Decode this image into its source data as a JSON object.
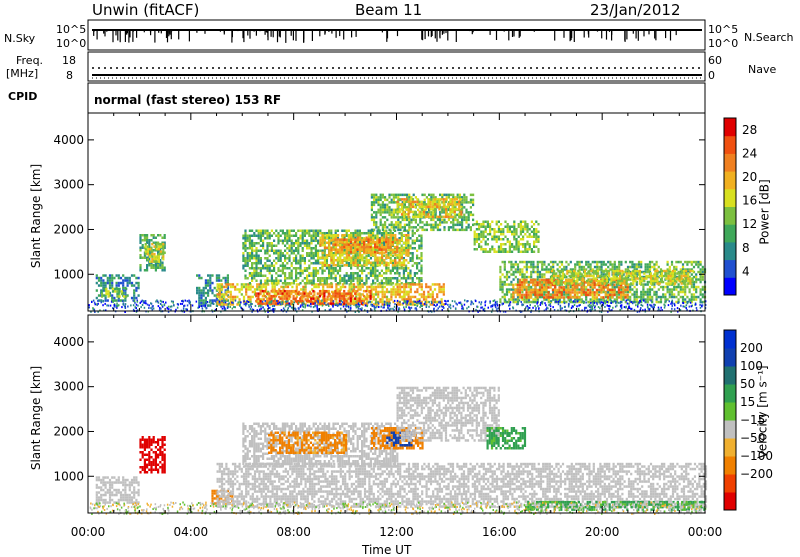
{
  "header": {
    "station": "Unwin (fitACF)",
    "beam": "Beam 11",
    "date": "23/Jan/2012"
  },
  "noise_panel": {
    "left_label": "N.Sky",
    "left_ticks": [
      "10^5",
      "10^0"
    ],
    "right_ticks": [
      "10^5",
      "10^0"
    ],
    "right_label": "N.Search"
  },
  "freq_panel": {
    "left_label_1": "Freq.",
    "left_label_2": "[MHz]",
    "left_ticks": [
      "18",
      "8"
    ],
    "right_ticks": [
      "60",
      "0"
    ],
    "right_label": "Nave"
  },
  "cpid": {
    "label": "CPID",
    "text": "normal (fast stereo) 153 RF"
  },
  "colors": {
    "power": [
      "#0000ff",
      "#2050d0",
      "#2a8a8a",
      "#3fa85a",
      "#7cc040",
      "#d8e020",
      "#f0b020",
      "#f08020",
      "#f05010",
      "#e00000"
    ],
    "velocity": [
      "#e00000",
      "#f04000",
      "#f08000",
      "#f0b030",
      "#c0c0c0",
      "#60c030",
      "#30a050",
      "#207070",
      "#1040b0",
      "#0030d0"
    ]
  },
  "chart_data": [
    {
      "type": "heatmap",
      "title": "",
      "ylabel": "Slant Range [km]",
      "xlabel": "",
      "ylim": [
        180,
        4600
      ],
      "y_ticks": [
        "1000",
        "2000",
        "3000",
        "4000"
      ],
      "y_tick_values": [
        1000,
        2000,
        3000,
        4000
      ],
      "colorbar": {
        "label": "Power [dB]",
        "range": [
          0,
          30
        ],
        "ticks": [
          "4",
          "8",
          "12",
          "16",
          "20",
          "24",
          "28"
        ],
        "tick_values": [
          4,
          8,
          12,
          16,
          20,
          24,
          28
        ]
      },
      "regions": [
        {
          "t0": 0.3,
          "t1": 2.0,
          "r0": 400,
          "r1": 1000,
          "level": 8
        },
        {
          "t0": 0.5,
          "t1": 1.5,
          "r0": 500,
          "r1": 700,
          "level": 14
        },
        {
          "t0": 2.0,
          "t1": 3.0,
          "r0": 1100,
          "r1": 1900,
          "level": 10
        },
        {
          "t0": 2.2,
          "t1": 2.9,
          "r0": 1300,
          "r1": 1700,
          "level": 16
        },
        {
          "t0": 4.2,
          "t1": 5.4,
          "r0": 300,
          "r1": 1000,
          "level": 8
        },
        {
          "t0": 5.0,
          "t1": 12.5,
          "r0": 300,
          "r1": 800,
          "level": 18
        },
        {
          "t0": 6.5,
          "t1": 11.0,
          "r0": 350,
          "r1": 650,
          "level": 24
        },
        {
          "t0": 6.0,
          "t1": 13.0,
          "r0": 800,
          "r1": 2000,
          "level": 12
        },
        {
          "t0": 9.0,
          "t1": 12.5,
          "r0": 1200,
          "r1": 1900,
          "level": 18
        },
        {
          "t0": 9.5,
          "t1": 12.0,
          "r0": 1500,
          "r1": 1800,
          "level": 22
        },
        {
          "t0": 11.0,
          "t1": 15.0,
          "r0": 2000,
          "r1": 2800,
          "level": 12
        },
        {
          "t0": 12.0,
          "t1": 14.5,
          "r0": 2300,
          "r1": 2700,
          "level": 18
        },
        {
          "t0": 12.0,
          "t1": 13.8,
          "r0": 300,
          "r1": 800,
          "level": 20
        },
        {
          "t0": 15.0,
          "t1": 17.5,
          "r0": 1500,
          "r1": 2200,
          "level": 14
        },
        {
          "t0": 16.0,
          "t1": 24.0,
          "r0": 400,
          "r1": 1300,
          "level": 12
        },
        {
          "t0": 16.5,
          "t1": 21.0,
          "r0": 500,
          "r1": 900,
          "level": 22
        },
        {
          "t0": 18.0,
          "t1": 23.5,
          "r0": 800,
          "r1": 1100,
          "level": 16
        }
      ]
    },
    {
      "type": "heatmap",
      "title": "",
      "ylabel": "Slant Range [km]",
      "xlabel": "Time UT",
      "ylim": [
        180,
        4600
      ],
      "y_ticks": [
        "1000",
        "2000",
        "3000",
        "4000"
      ],
      "y_tick_values": [
        1000,
        2000,
        3000,
        4000
      ],
      "x_ticks": [
        "00:00",
        "04:00",
        "08:00",
        "12:00",
        "16:00",
        "20:00",
        "00:00"
      ],
      "x_tick_values": [
        0,
        4,
        8,
        12,
        16,
        20,
        24
      ],
      "colorbar": {
        "label": "Velocity [m s⁻¹]",
        "range": [
          -250,
          250
        ],
        "ticks": [
          "200",
          "100",
          "50",
          "15",
          "−15",
          "−50",
          "−100",
          "−200"
        ],
        "tick_values": [
          200,
          100,
          50,
          15,
          -15,
          -50,
          -100,
          -200
        ]
      },
      "regions": [
        {
          "t0": 0.3,
          "t1": 2.0,
          "r0": 400,
          "r1": 1000,
          "level": 0
        },
        {
          "t0": 2.0,
          "t1": 3.0,
          "r0": 1100,
          "r1": 1900,
          "level": -220
        },
        {
          "t0": 4.8,
          "t1": 5.6,
          "r0": 400,
          "r1": 700,
          "level": -60
        },
        {
          "t0": 5.0,
          "t1": 24.0,
          "r0": 300,
          "r1": 1300,
          "level": 0
        },
        {
          "t0": 6.0,
          "t1": 12.0,
          "r0": 1200,
          "r1": 2200,
          "level": 0
        },
        {
          "t0": 7.0,
          "t1": 10.0,
          "r0": 1500,
          "r1": 2000,
          "level": -40
        },
        {
          "t0": 11.0,
          "t1": 13.0,
          "r0": 1600,
          "r1": 2100,
          "level": -60
        },
        {
          "t0": 11.6,
          "t1": 12.6,
          "r0": 1700,
          "r1": 2000,
          "level": 180
        },
        {
          "t0": 12.0,
          "t1": 16.0,
          "r0": 1800,
          "r1": 3000,
          "level": 0
        },
        {
          "t0": 15.5,
          "t1": 17.0,
          "r0": 1600,
          "r1": 2100,
          "level": 40
        },
        {
          "t0": 17.0,
          "t1": 24.0,
          "r0": 250,
          "r1": 450,
          "level": 40
        }
      ]
    }
  ]
}
